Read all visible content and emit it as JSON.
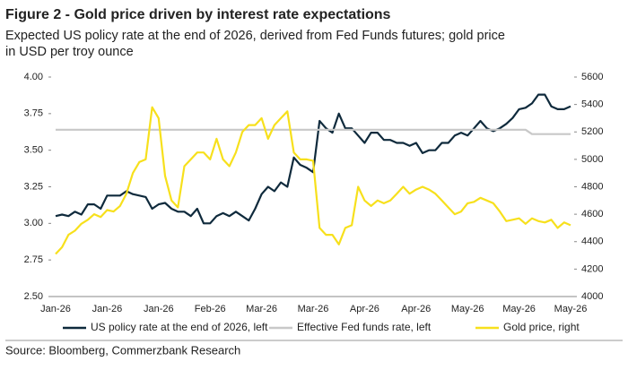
{
  "chart_data": {
    "type": "line",
    "title": "Figure 2 - Gold price driven by interest rate expectations",
    "subtitle": [
      "Expected US policy rate at the end of 2026, derived from Fed Funds futures; gold price",
      "in USD per troy ounce"
    ],
    "source": "Source: Bloomberg, Commerzbank Research",
    "categories": [
      "Jan-26",
      null,
      null,
      null,
      null,
      null,
      null,
      null,
      "Jan-26",
      null,
      null,
      null,
      null,
      null,
      null,
      null,
      "Jan-26",
      null,
      null,
      null,
      null,
      null,
      null,
      null,
      "Feb-26",
      null,
      null,
      null,
      null,
      null,
      null,
      null,
      "Mar-26",
      null,
      null,
      null,
      null,
      null,
      null,
      null,
      "Mar-26",
      null,
      null,
      null,
      null,
      null,
      null,
      null,
      "Apr-26",
      null,
      null,
      null,
      null,
      null,
      null,
      null,
      "Apr-26",
      null,
      null,
      null,
      null,
      null,
      null,
      null,
      "May-26",
      null,
      null,
      null,
      null,
      null,
      null,
      null,
      "May-26",
      null,
      null,
      null,
      null,
      null,
      null,
      null,
      "May-26"
    ],
    "ylim": [
      2.5,
      4.0
    ],
    "yticks": [
      {
        "value": 2.5,
        "label": "2.50"
      },
      {
        "value": 2.75,
        "label": "2.75"
      },
      {
        "value": 3.0,
        "label": "3.00"
      },
      {
        "value": 3.25,
        "label": "3.25"
      },
      {
        "value": 3.5,
        "label": "3.50"
      },
      {
        "value": 3.75,
        "label": "3.75"
      },
      {
        "value": 4.0,
        "label": "4.00"
      }
    ],
    "y2lim": [
      4000,
      5600
    ],
    "y2ticks": [
      4000,
      4200,
      4400,
      4600,
      4800,
      5000,
      5200,
      5400,
      5600
    ],
    "series": [
      {
        "name": "US policy rate at the end of 2026, left",
        "color": "#0f2a3c",
        "values": [
          3.05,
          3.06,
          3.05,
          3.08,
          3.06,
          3.13,
          3.13,
          3.1,
          3.19,
          3.19,
          3.19,
          3.22,
          3.2,
          3.19,
          3.18,
          3.1,
          3.13,
          3.14,
          3.1,
          3.08,
          3.08,
          3.05,
          3.1,
          3.0,
          3.0,
          3.05,
          3.07,
          3.05,
          3.08,
          3.05,
          3.02,
          3.1,
          3.2,
          3.25,
          3.22,
          3.28,
          3.25,
          3.45,
          3.4,
          3.38,
          3.35,
          3.7,
          3.65,
          3.62,
          3.75,
          3.65,
          3.65,
          3.6,
          3.55,
          3.62,
          3.62,
          3.57,
          3.57,
          3.55,
          3.55,
          3.53,
          3.55,
          3.48,
          3.5,
          3.5,
          3.55,
          3.55,
          3.6,
          3.62,
          3.6,
          3.65,
          3.7,
          3.65,
          3.63,
          3.65,
          3.68,
          3.72,
          3.78,
          3.79,
          3.82,
          3.88,
          3.88,
          3.8,
          3.78,
          3.78,
          3.8
        ]
      },
      {
        "name": "Effective Fed funds rate, left",
        "color": "#c8c8c8",
        "values": [
          3.64,
          3.64,
          3.64,
          3.64,
          3.64,
          3.64,
          3.64,
          3.64,
          3.64,
          3.64,
          3.64,
          3.64,
          3.64,
          3.64,
          3.64,
          3.64,
          3.64,
          3.64,
          3.64,
          3.64,
          3.64,
          3.64,
          3.64,
          3.64,
          3.64,
          3.64,
          3.64,
          3.64,
          3.64,
          3.64,
          3.64,
          3.64,
          3.64,
          3.64,
          3.64,
          3.64,
          3.64,
          3.64,
          3.64,
          3.64,
          3.64,
          3.64,
          3.64,
          3.64,
          3.64,
          3.64,
          3.64,
          3.64,
          3.64,
          3.64,
          3.64,
          3.64,
          3.64,
          3.64,
          3.64,
          3.64,
          3.64,
          3.64,
          3.64,
          3.64,
          3.64,
          3.64,
          3.64,
          3.64,
          3.64,
          3.64,
          3.64,
          3.64,
          3.64,
          3.64,
          3.64,
          3.64,
          3.64,
          3.64,
          3.61,
          3.61,
          3.61,
          3.61,
          3.61,
          3.61,
          3.61
        ]
      },
      {
        "name": "Gold price, right",
        "color": "#f7e01c",
        "axis": "y2",
        "values": [
          4310,
          4360,
          4450,
          4480,
          4530,
          4560,
          4600,
          4580,
          4630,
          4620,
          4660,
          4750,
          4900,
          4980,
          5000,
          5380,
          5300,
          4880,
          4700,
          4650,
          4950,
          5000,
          5050,
          5050,
          5000,
          5150,
          5000,
          4950,
          5050,
          5200,
          5250,
          5250,
          5300,
          5150,
          5250,
          5300,
          5350,
          5050,
          5000,
          5000,
          4990,
          4500,
          4450,
          4450,
          4380,
          4500,
          4520,
          4800,
          4700,
          4660,
          4700,
          4680,
          4700,
          4750,
          4800,
          4750,
          4780,
          4800,
          4780,
          4750,
          4700,
          4650,
          4600,
          4620,
          4680,
          4690,
          4720,
          4700,
          4680,
          4620,
          4550,
          4560,
          4570,
          4530,
          4570,
          4550,
          4540,
          4560,
          4500,
          4540,
          4520
        ]
      }
    ]
  }
}
